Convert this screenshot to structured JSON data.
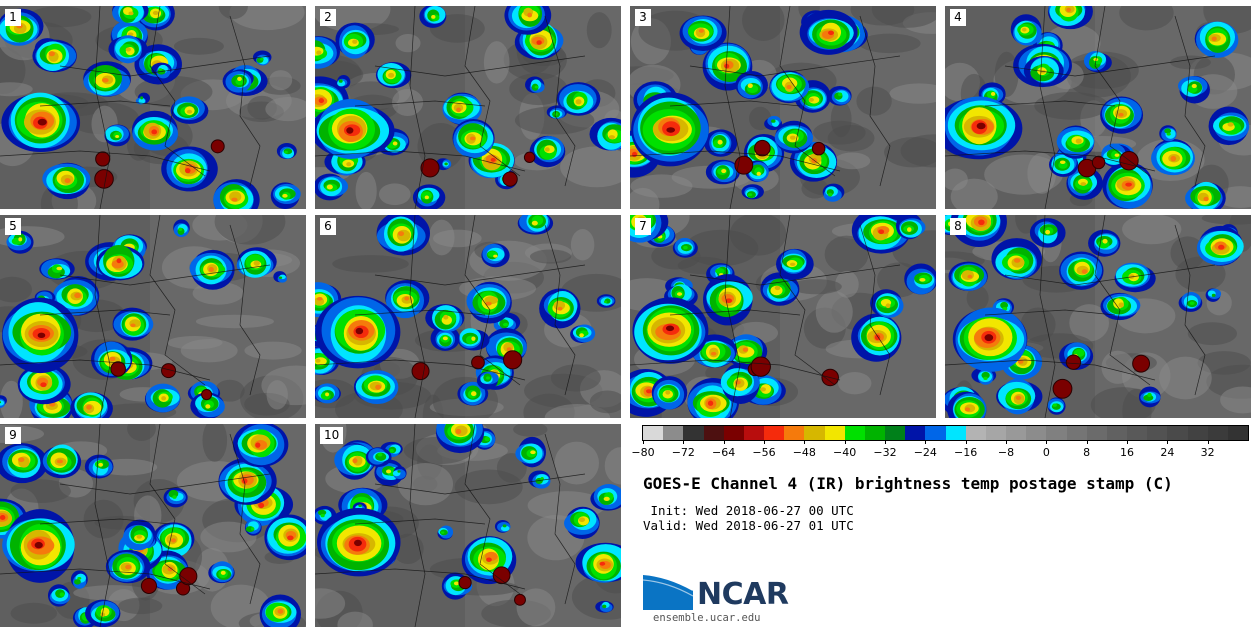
{
  "panels": [
    {
      "label": "1"
    },
    {
      "label": "2"
    },
    {
      "label": "3"
    },
    {
      "label": "4"
    },
    {
      "label": "5"
    },
    {
      "label": "6"
    },
    {
      "label": "7"
    },
    {
      "label": "8"
    },
    {
      "label": "9"
    },
    {
      "label": "10"
    }
  ],
  "colorbar": {
    "colors": [
      "#d9d9d9",
      "#8c8c8c",
      "#333333",
      "#4d1010",
      "#7a0000",
      "#b80d0d",
      "#f52b0c",
      "#f57a0c",
      "#d6b700",
      "#f2e600",
      "#00e000",
      "#00b300",
      "#00801a",
      "#0014a8",
      "#0066e8",
      "#00e5ff",
      "#b3b3b3",
      "#a6a6a6",
      "#999999",
      "#8c8c8c",
      "#808080",
      "#757575",
      "#6b6b6b",
      "#616161",
      "#595959",
      "#525252",
      "#4a4a4a",
      "#424242",
      "#3b3b3b",
      "#333333"
    ],
    "tick_labels": [
      "−80",
      "−72",
      "−64",
      "−56",
      "−48",
      "−40",
      "−32",
      "−24",
      "−16",
      "−8",
      "0",
      "8",
      "16",
      "24",
      "32"
    ],
    "min": -80,
    "max": 40
  },
  "title": "GOES-E Channel 4 (IR) brightness temp postage stamp (C)",
  "init_text": " Init: Wed 2018-06-27 00 UTC",
  "valid_text": "Valid: Wed 2018-06-27 01 UTC",
  "logo": {
    "name": "NCAR",
    "url": "ensemble.ucar.edu"
  }
}
